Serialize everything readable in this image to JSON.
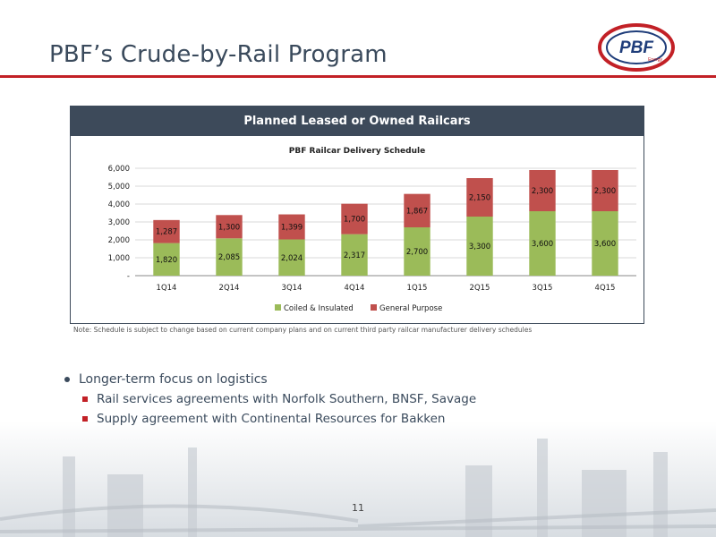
{
  "slide": {
    "title": "PBF’s Crude-by-Rail Program",
    "logo_text": "PBF",
    "logo_subtext": "Energy",
    "page_number": "11",
    "accent_color": "#c22026",
    "header_color": "#3d4a5a"
  },
  "chart_panel": {
    "header": "Planned Leased or Owned Railcars",
    "note": "Note: Schedule is subject to change based on current company plans and on current third party railcar manufacturer delivery schedules"
  },
  "chart_data": {
    "type": "bar",
    "stacked": true,
    "title": "PBF Railcar Delivery Schedule",
    "categories": [
      "1Q14",
      "2Q14",
      "3Q14",
      "4Q14",
      "1Q15",
      "2Q15",
      "3Q15",
      "4Q15"
    ],
    "series": [
      {
        "name": "Coiled & Insulated",
        "color": "#9bbb59",
        "values": [
          1820,
          2085,
          2024,
          2317,
          2700,
          3300,
          3600,
          3600
        ],
        "labels": [
          "1,820",
          "2,085",
          "2,024",
          "2,317",
          "2,700",
          "3,300",
          "3,600",
          "3,600"
        ]
      },
      {
        "name": "General Purpose",
        "color": "#c0504d",
        "values": [
          1287,
          1300,
          1399,
          1700,
          1867,
          2150,
          2300,
          2300
        ],
        "labels": [
          "1,287",
          "1,300",
          "1,399",
          "1,700",
          "1,867",
          "2,150",
          "2,300",
          "2,300"
        ]
      }
    ],
    "ylim": [
      0,
      6000
    ],
    "yticks": [
      0,
      1000,
      2000,
      3000,
      4000,
      5000,
      6000
    ],
    "ytick_labels": [
      "-",
      "1,000",
      "2,000",
      "3,000",
      "4,000",
      "5,000",
      "6,000"
    ],
    "grid": true,
    "legend_position": "bottom"
  },
  "bullets": {
    "main": "Longer-term focus on logistics",
    "sub": [
      "Rail services agreements with Norfolk Southern, BNSF, Savage",
      "Supply agreement with Continental Resources for Bakken"
    ]
  }
}
